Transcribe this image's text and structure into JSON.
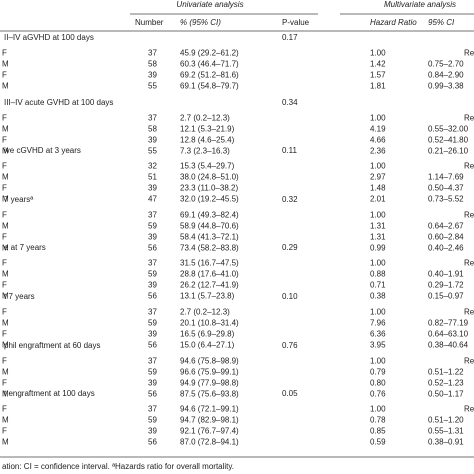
{
  "table": {
    "group_headers": [
      "Univariate analysis",
      "Multivariate analysis"
    ],
    "columns": [
      "Number",
      "% (95% CI)",
      "P-value",
      "Hazard Ratio",
      "95% CI"
    ],
    "sections": [
      {
        "title": "II–IV aGVHD at 100 days",
        "p_value": "0.17",
        "rows": [
          [
            "F",
            "37",
            "45.9 (29.2–61.2)",
            "1.00",
            "",
            "Re"
          ],
          [
            "M",
            "58",
            "60.3 (46.4–71.7)",
            "1.42",
            "0.75–2.70",
            ""
          ],
          [
            "F",
            "39",
            "69.2 (51.2–81.6)",
            "1.57",
            "0.84–2.90",
            ""
          ],
          [
            "M",
            "55",
            "69.1 (54.8–79.7)",
            "1.81",
            "0.99–3.38",
            ""
          ]
        ]
      },
      {
        "title": "III–IV acute GVHD at 100 days",
        "p_value": "0.34",
        "rows": [
          [
            "F",
            "37",
            "2.7 (0.2–12.3)",
            "1.00",
            "",
            "Re"
          ],
          [
            "M",
            "58",
            "12.1 (5.3–21.9)",
            "4.19",
            "0.55–32.00",
            ""
          ],
          [
            "F",
            "39",
            "12.8 (4.6–25.4)",
            "4.66",
            "0.52–41.80",
            ""
          ],
          [
            "M",
            "55",
            "7.3 (2.3–16.3)",
            "2.36",
            "0.21–26.10",
            ""
          ]
        ]
      },
      {
        "title": "ive cGVHD at 3 years",
        "p_value": "0.11",
        "rows": [
          [
            "F",
            "32",
            "15.3 (5.4–29.7)",
            "1.00",
            "",
            "Re"
          ],
          [
            "M",
            "51",
            "38.0 (24.8–51.0)",
            "2.97",
            "1.14–7.69",
            ""
          ],
          [
            "F",
            "39",
            "23.3 (11.0–38.2)",
            "1.48",
            "0.50–4.37",
            ""
          ],
          [
            "M",
            "47",
            "32.0 (19.2–45.5)",
            "2.01",
            "0.73–5.52",
            ""
          ]
        ]
      },
      {
        "title": "7 yearsª",
        "p_value": "0.32",
        "rows": [
          [
            "F",
            "37",
            "69.1 (49.3–82.4)",
            "1.00",
            "",
            "Re"
          ],
          [
            "M",
            "59",
            "58.9 (44.8–70.6)",
            "1.31",
            "0.64–2.67",
            ""
          ],
          [
            "F",
            "39",
            "58.4 (41.3–72.1)",
            "1.31",
            "0.60–2.84",
            ""
          ],
          [
            "M",
            "56",
            "73.4 (58.2–83.8)",
            "0.99",
            "0.40–2.46",
            ""
          ]
        ]
      },
      {
        "title": "e at 7 years",
        "p_value": "0.29",
        "rows": [
          [
            "F",
            "37",
            "31.5 (16.7–47.5)",
            "1.00",
            "",
            "Re"
          ],
          [
            "M",
            "59",
            "28.8 (17.6–41.0)",
            "0.88",
            "0.40–1.91",
            ""
          ],
          [
            "F",
            "39",
            "26.2 (12.7–41.9)",
            "0.71",
            "0.29–1.72",
            ""
          ],
          [
            "M",
            "56",
            "13.1 (5.7–23.8)",
            "0.38",
            "0.15–0.97",
            ""
          ]
        ]
      },
      {
        "title": "t 7 years",
        "p_value": "0.10",
        "rows": [
          [
            "F",
            "37",
            "2.7 (0.2–12.3)",
            "1.00",
            "",
            "Re"
          ],
          [
            "M",
            "59",
            "20.1 (10.8–31.4)",
            "7.96",
            "0.82–77.19",
            ""
          ],
          [
            "F",
            "39",
            "16.5 (6.9–29.8)",
            "6.36",
            "0.64–63.10",
            ""
          ],
          [
            "M",
            "56",
            "15.0 (6.4–27.1)",
            "3.95",
            "0.38–40.64",
            ""
          ]
        ]
      },
      {
        "title": "phil engraftment at 60 days",
        "p_value": "0.76",
        "rows": [
          [
            "F",
            "37",
            "94.6 (75.8–98.9)",
            "1.00",
            "",
            "Re"
          ],
          [
            "M",
            "59",
            "96.6 (75.9–99.1)",
            "0.79",
            "0.51–1.22",
            ""
          ],
          [
            "F",
            "39",
            "94.9 (77.9–98.8)",
            "0.80",
            "0.52–1.23",
            ""
          ],
          [
            "M",
            "56",
            "87.5 (75.6–93.8)",
            "0.76",
            "0.50–1.17",
            ""
          ]
        ]
      },
      {
        "title": "t engraftment at 100 days",
        "p_value": "0.05",
        "rows": [
          [
            "F",
            "37",
            "94.6 (72.1–99.1)",
            "1.00",
            "",
            "Re"
          ],
          [
            "M",
            "59",
            "94.7 (82.9–98.1)",
            "0.78",
            "0.51–1.20",
            ""
          ],
          [
            "F",
            "39",
            "92.1 (76.7–97.4)",
            "0.85",
            "0.55–1.31",
            ""
          ],
          [
            "M",
            "56",
            "87.0 (72.8–94.1)",
            "0.59",
            "0.38–0.91",
            ""
          ]
        ]
      }
    ],
    "footnote": "ation: CI = confidence interval. ªHazards ratio for overall mortality."
  }
}
